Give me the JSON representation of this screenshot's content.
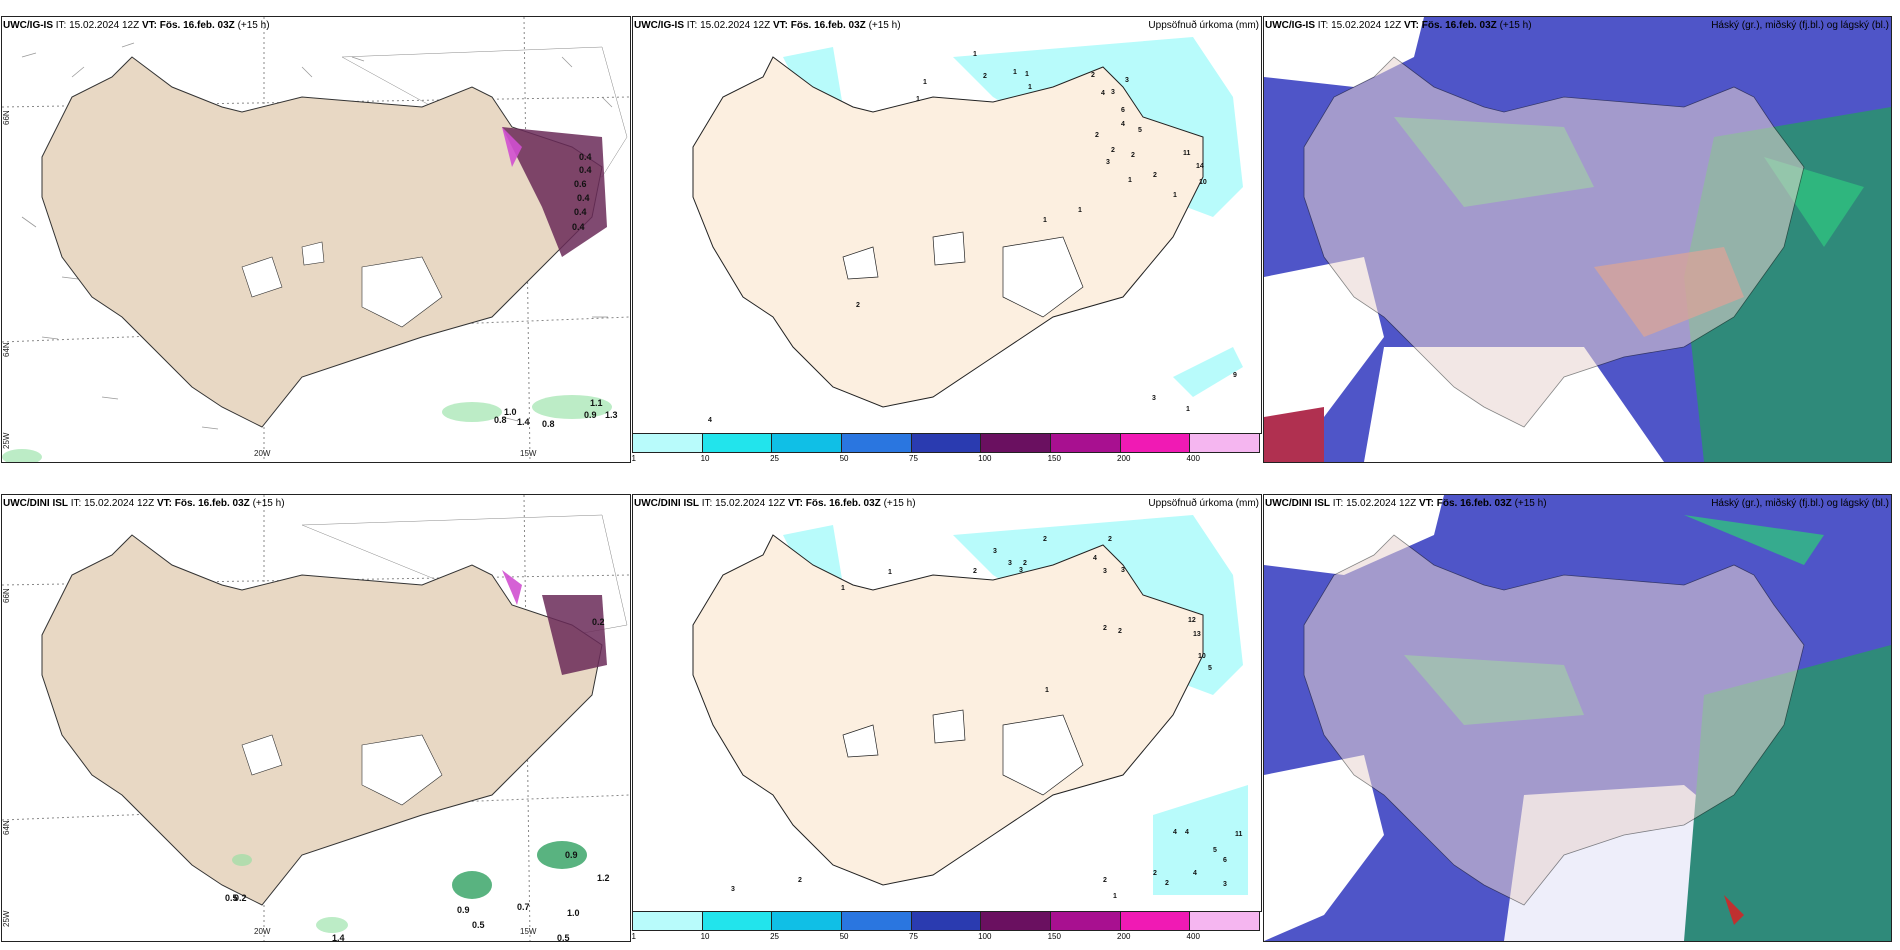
{
  "rows": [
    {
      "model": "UWC/IG-IS",
      "wind_panel": {
        "issue_label": "IT:",
        "issue_time": "15.02.2024 12Z",
        "valid_label": "VT:",
        "valid_time": "Fös. 16.feb. 03Z",
        "lead": "(+15 h)",
        "values": [
          "0.4",
          "0.4",
          "0.6",
          "0.4",
          "0.4",
          "0.4",
          "1.1",
          "1.0",
          "0.8",
          "1.4",
          "0.8",
          "0.9",
          "1.3"
        ],
        "lon_labels": [
          "20W",
          "15W"
        ],
        "lat_labels": [
          "66N",
          "64N",
          "25W"
        ]
      },
      "precip_panel": {
        "issue_label": "IT:",
        "issue_time": "15.02.2024 12Z",
        "valid_label": "VT:",
        "valid_time": "Fös. 16.feb. 03Z",
        "lead": "(+15 h)",
        "right_title": "Uppsöfnuð úrkoma (mm)",
        "values": [
          "1",
          "1",
          "2",
          "1",
          "1",
          "1",
          "2",
          "4",
          "3",
          "3",
          "2",
          "4",
          "6",
          "5",
          "2",
          "2",
          "3",
          "2",
          "1",
          "11",
          "14",
          "10",
          "1",
          "1",
          "1",
          "1",
          "9",
          "3",
          "1",
          "4",
          "2"
        ]
      },
      "cloud_panel": {
        "issue_label": "IT:",
        "issue_time": "15.02.2024 12Z",
        "valid_label": "VT:",
        "valid_time": "Fös. 16.feb. 03Z",
        "lead": "(+15 h)",
        "right_title": "Háský (gr.), miðský (fj.bl.) og lágský (bl.)"
      }
    },
    {
      "model": "UWC/DINI ISL",
      "wind_panel": {
        "issue_label": "IT:",
        "issue_time": "15.02.2024 12Z",
        "valid_label": "VT:",
        "valid_time": "Fös. 16.feb. 03Z",
        "lead": "(+15 h)",
        "values": [
          "0.2",
          "0.5",
          "0.9",
          "0.2",
          "0.9",
          "1.2",
          "0.7",
          "1.0",
          "0.5",
          "0.5",
          "0.5",
          "1.4"
        ],
        "lon_labels": [
          "20W",
          "15W"
        ],
        "lat_labels": [
          "66N",
          "64N",
          "25W"
        ]
      },
      "precip_panel": {
        "issue_label": "IT:",
        "issue_time": "15.02.2024 12Z",
        "valid_label": "VT:",
        "valid_time": "Fös. 16.feb. 03Z",
        "lead": "(+15 h)",
        "right_title": "Uppsöfnuð úrkoma (mm)",
        "values": [
          "2",
          "3",
          "3",
          "2",
          "3",
          "2",
          "1",
          "1",
          "2",
          "4",
          "3",
          "3",
          "2",
          "2",
          "12",
          "13",
          "10",
          "5",
          "1",
          "4",
          "4",
          "11",
          "5",
          "6",
          "4",
          "2",
          "2",
          "2",
          "3",
          "1",
          "3",
          "2"
        ]
      },
      "cloud_panel": {
        "issue_label": "IT:",
        "issue_time": "15.02.2024 12Z",
        "valid_label": "VT:",
        "valid_time": "Fös. 16.feb. 03Z",
        "lead": "(+15 h)",
        "right_title": "Háský (gr.), miðský (fj.bl.) og lágský (bl.)"
      }
    }
  ],
  "colorbar": {
    "ticks": [
      "1",
      "10",
      "25",
      "50",
      "75",
      "100",
      "150",
      "200",
      "400"
    ],
    "colors": [
      "#b8fbfb",
      "#22e4ec",
      "#10bfe6",
      "#2a76e0",
      "#2a3bb0",
      "#6a1060",
      "#a81090",
      "#f01ab4",
      "#f5b6f0"
    ]
  },
  "colors": {
    "land": "#f3e6d6",
    "land_wind": "#e8d8c4",
    "ice": "#ffffff",
    "precip_light": "#b8fbfb",
    "cloud_high": "#2f8a6a",
    "cloud_mid": "#5052c4",
    "cloud_low": "#3a54c0"
  }
}
